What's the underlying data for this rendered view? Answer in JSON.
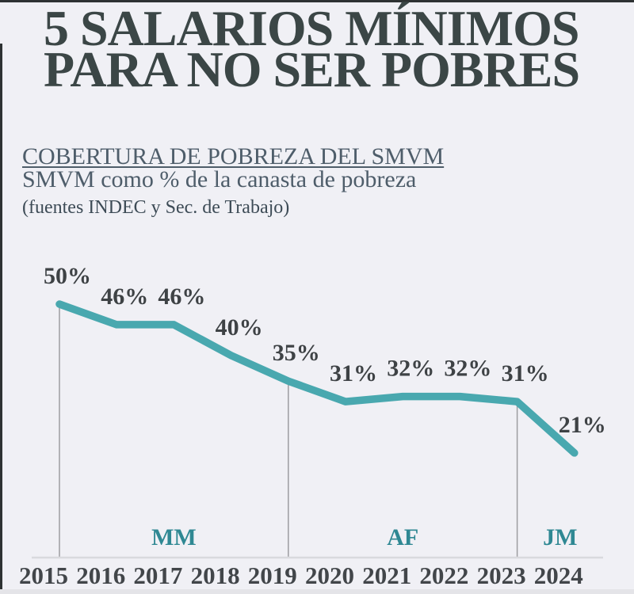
{
  "page": {
    "title_line1": "5 SALARIOS MÍNIMOS",
    "title_line2": "PARA NO SER POBRES"
  },
  "subtitle": {
    "line1": "COBERTURA DE POBREZA DEL SMVM",
    "line2": "SMVM como % de la canasta de pobreza",
    "source": "(fuentes INDEC y Sec. de Trabajo)"
  },
  "colors": {
    "background": "#f0f0f5",
    "title": "#3b4646",
    "subtitle": "#4e5d6a",
    "source": "#3d4b56",
    "line": "#49a8af",
    "data_label": "#3e4245",
    "year_label": "#42464a",
    "term_label": "#2f8893",
    "axis": "#d9dade",
    "divider": "#9d9da1",
    "page_border": "#2e3233",
    "page_edge": "#e4e4e8"
  },
  "chart_data": {
    "type": "line",
    "title": "COBERTURA DE POBREZA DEL SMVM",
    "subtitle": "SMVM como % de la canasta de pobreza",
    "source": "(fuentes INDEC y Sec. de Trabajo)",
    "categories": [
      "2015",
      "2016",
      "2017",
      "2018",
      "2019",
      "2020",
      "2021",
      "2022",
      "2023",
      "2024"
    ],
    "values": [
      50,
      46,
      46,
      40,
      35,
      31,
      32,
      32,
      31,
      21
    ],
    "value_suffix": "%",
    "ylim": [
      0,
      55
    ],
    "grid": false,
    "legend": false,
    "term_dividers": [
      "2015",
      "2019",
      "2023"
    ],
    "terms": [
      {
        "label": "MM",
        "from": "2015",
        "to": "2019"
      },
      {
        "label": "AF",
        "from": "2019",
        "to": "2023"
      },
      {
        "label": "JM",
        "from": "2023",
        "to": "2024"
      }
    ]
  }
}
